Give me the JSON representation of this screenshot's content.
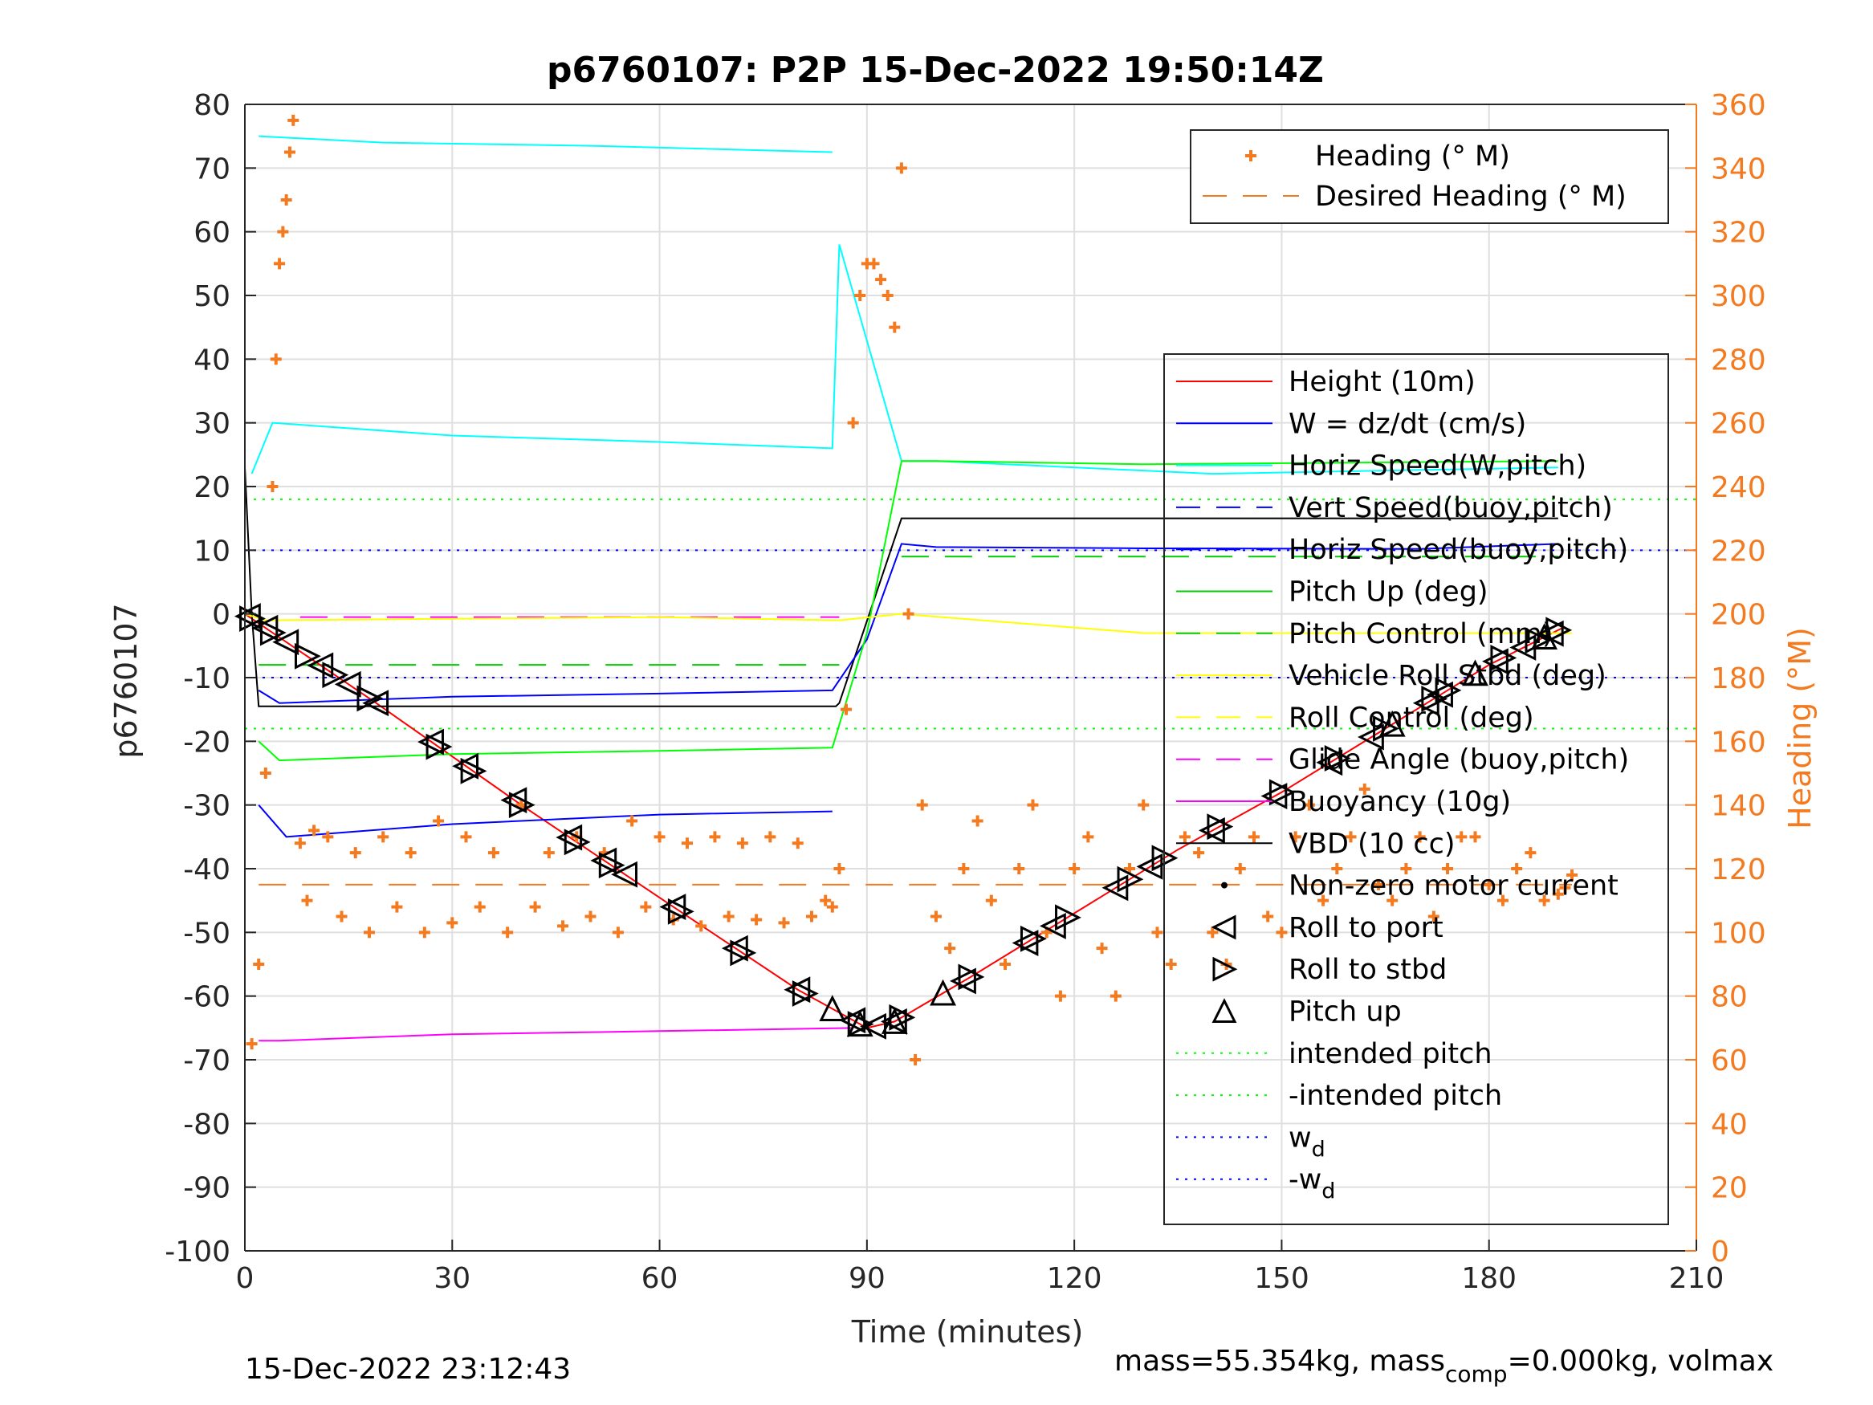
{
  "title": "p6760107: P2P 15-Dec-2022 19:50:14Z",
  "footer_left": "15-Dec-2022 23:12:43",
  "footer_right": {
    "prefix": "mass=55.354kg, mass",
    "sub": "comp",
    "suffix": "=0.000kg, volmax"
  },
  "colors": {
    "heading": "#f47a20",
    "axis": "#262626",
    "grid": "#dfdfdf"
  },
  "chart_data": {
    "type": "line",
    "title": "p6760107: P2P 15-Dec-2022 19:50:14Z",
    "xlabel": "Time (minutes)",
    "ylabel": "p6760107",
    "y2label": "Heading (°M)",
    "xlim": [
      0,
      210
    ],
    "ylim": [
      -100,
      80
    ],
    "y2lim": [
      0,
      360
    ],
    "xticks": [
      0,
      30,
      60,
      90,
      120,
      150,
      180,
      210
    ],
    "yticks": [
      -100,
      -90,
      -80,
      -70,
      -60,
      -50,
      -40,
      -30,
      -20,
      -10,
      0,
      10,
      20,
      30,
      40,
      50,
      60,
      70,
      80
    ],
    "y2ticks": [
      0,
      20,
      40,
      60,
      80,
      100,
      120,
      140,
      160,
      180,
      200,
      220,
      240,
      260,
      280,
      300,
      320,
      340,
      360
    ],
    "grid": true,
    "legend_heading": [
      {
        "label": "Heading (° M)",
        "color": "#f47a20",
        "style": "plus"
      },
      {
        "label": "Desired Heading (° M)",
        "color": "#f47a20",
        "style": "dash"
      }
    ],
    "legend_main": [
      {
        "label": "Height (10m)",
        "color": "#ff0000",
        "style": "line"
      },
      {
        "label": "W = dz/dt (cm/s)",
        "color": "#0000ff",
        "style": "line"
      },
      {
        "label": "Horiz Speed(W,pitch)",
        "color": "#00ffff",
        "style": "line"
      },
      {
        "label": "Vert Speed(buoy,pitch)",
        "color": "#0000ff",
        "style": "dash"
      },
      {
        "label": "Horiz Speed(buoy,pitch)",
        "color": "#0000ff",
        "style": "dash"
      },
      {
        "label": "Pitch Up (deg)",
        "color": "#00cc00",
        "style": "line"
      },
      {
        "label": "Pitch Control (mm)",
        "color": "#00cc00",
        "style": "dash"
      },
      {
        "label": "Vehicle Roll Stbd (deg)",
        "color": "#ffff00",
        "style": "line"
      },
      {
        "label": "Roll Control (deg)",
        "color": "#ffff00",
        "style": "dash"
      },
      {
        "label": "Glide Angle (buoy,pitch)",
        "color": "#ff00ff",
        "style": "dash"
      },
      {
        "label": "Buoyancy (10g)",
        "color": "#ff00ff",
        "style": "line"
      },
      {
        "label": "VBD (10 cc)",
        "color": "#000000",
        "style": "line"
      },
      {
        "label": "Non-zero motor current",
        "color": "#000000",
        "style": "dot"
      },
      {
        "label": "Roll to port",
        "color": "#000000",
        "style": "tri-left"
      },
      {
        "label": "Roll to stbd",
        "color": "#000000",
        "style": "tri-right"
      },
      {
        "label": "Pitch up",
        "color": "#000000",
        "style": "tri-up"
      },
      {
        "label": "intended pitch",
        "color": "#00ff00",
        "style": "dot-line"
      },
      {
        "label": "-intended pitch",
        "color": "#00ff00",
        "style": "dot-line"
      },
      {
        "label": "w",
        "sub": "d",
        "color": "#0000ff",
        "style": "dot-line"
      },
      {
        "label": "-w",
        "sub": "d",
        "color": "#0000ff",
        "style": "dot-line"
      }
    ],
    "series": [
      {
        "name": "Height (10m)",
        "color": "#ff0000",
        "x": [
          0,
          19,
          40,
          62,
          80,
          90,
          94,
          105,
          120,
          135,
          150,
          165,
          180,
          191
        ],
        "y": [
          0,
          -14,
          -30,
          -46,
          -59,
          -65,
          -64,
          -57,
          -47,
          -37,
          -28,
          -18,
          -8,
          -2
        ]
      },
      {
        "name": "VBD (10 cc)",
        "color": "#000000",
        "x": [
          0,
          1,
          2,
          85.5,
          86,
          95,
          96,
          190
        ],
        "y": [
          23,
          0,
          -14.5,
          -14.5,
          -14,
          15,
          15,
          15
        ]
      },
      {
        "name": "Buoyancy (10g)",
        "color": "#ff00ff",
        "x": [
          2,
          5,
          30,
          60,
          88
        ],
        "y": [
          -67,
          -67,
          -66,
          -65.5,
          -65
        ]
      },
      {
        "name": "W = dz/dt (cm/s)",
        "color": "#0000ff",
        "x": [
          2,
          5,
          30,
          60,
          85,
          90,
          95,
          100,
          130,
          170,
          190
        ],
        "y": [
          -12,
          -14,
          -13,
          -12.5,
          -12,
          -4,
          11,
          10.5,
          10.3,
          10.2,
          11
        ]
      },
      {
        "name": "Horiz Speed(W,pitch)",
        "color": "#00ffff",
        "x": [
          1,
          4,
          30,
          60,
          85,
          86,
          95,
          100,
          140,
          190
        ],
        "y": [
          22,
          30,
          28,
          27,
          26,
          58,
          24,
          24,
          22,
          23
        ]
      },
      {
        "name": "Vert Speed(buoy,pitch) upper",
        "color": "#00ffff",
        "x": [
          2,
          20,
          50,
          85
        ],
        "y": [
          75,
          74,
          73.5,
          72.5
        ]
      },
      {
        "name": "Pitch Up (deg)",
        "color": "#00ff00",
        "x": [
          2,
          5,
          30,
          60,
          85,
          90,
          95,
          100,
          130,
          190
        ],
        "y": [
          -20,
          -23,
          -22,
          -21.5,
          -21,
          -3,
          24,
          24,
          23.5,
          24
        ]
      },
      {
        "name": "Vert Speed(buoy,pitch) lower",
        "color": "#0000ff",
        "x": [
          2,
          6,
          30,
          60,
          85
        ],
        "y": [
          -30,
          -35,
          -33,
          -31.5,
          -31
        ]
      },
      {
        "name": "Vehicle Roll Stbd (deg)",
        "color": "#ffff00",
        "x": [
          0,
          3,
          60,
          86,
          95,
          130,
          192
        ],
        "y": [
          0,
          -1,
          -0.5,
          -1,
          0,
          -3,
          -3
        ]
      }
    ],
    "reference_lines": [
      {
        "name": "intended pitch",
        "y": 18,
        "color": "#00ff00",
        "style": "dotted"
      },
      {
        "name": "-intended pitch",
        "y": -18,
        "color": "#00ff00",
        "style": "dotted"
      },
      {
        "name": "w_d",
        "y": 10,
        "color": "#0000ff",
        "style": "dotted"
      },
      {
        "name": "-w_d",
        "y": -10,
        "color": "#0000ff",
        "style": "dotted"
      },
      {
        "name": "Pitch Control (mm) dive",
        "y": -8,
        "x": [
          2,
          86
        ],
        "color": "#00cc00",
        "style": "dashed"
      },
      {
        "name": "Pitch Control (mm) climb",
        "y": 9,
        "x": [
          95,
          190
        ],
        "color": "#00cc00",
        "style": "dashed"
      },
      {
        "name": "Glide Angle (buoy,pitch)",
        "y": -0.5,
        "x": [
          8,
          86
        ],
        "color": "#ff00ff",
        "style": "dashed"
      },
      {
        "name": "Desired Heading (° M)",
        "y2": 115,
        "x": [
          2,
          192
        ],
        "color": "#f47a20",
        "style": "dashed"
      }
    ],
    "heading_points": {
      "name": "Heading (° M)",
      "color": "#f47a20",
      "x": [
        1,
        2,
        3,
        4,
        4.5,
        5,
        5.5,
        6,
        6.5,
        7,
        8,
        9,
        10,
        12,
        14,
        16,
        18,
        20,
        22,
        24,
        26,
        28,
        30,
        32,
        34,
        36,
        38,
        40,
        42,
        44,
        46,
        48,
        50,
        52,
        54,
        56,
        58,
        60,
        62,
        64,
        66,
        68,
        70,
        72,
        74,
        76,
        78,
        80,
        82,
        84,
        85,
        86,
        87,
        88,
        89,
        90,
        91,
        92,
        93,
        94,
        95,
        96,
        97,
        98,
        100,
        102,
        104,
        106,
        108,
        110,
        112,
        114,
        116,
        118,
        120,
        122,
        124,
        126,
        128,
        130,
        132,
        134,
        136,
        138,
        140,
        142,
        144,
        146,
        148,
        150,
        152,
        154,
        156,
        158,
        160,
        162,
        164,
        166,
        168,
        170,
        172,
        174,
        176,
        178,
        180,
        182,
        184,
        186,
        188,
        190,
        191,
        192
      ],
      "y": [
        65,
        90,
        150,
        240,
        280,
        310,
        320,
        330,
        345,
        355,
        128,
        110,
        132,
        130,
        105,
        125,
        100,
        130,
        108,
        125,
        100,
        135,
        103,
        130,
        108,
        125,
        100,
        140,
        108,
        125,
        102,
        130,
        105,
        125,
        100,
        135,
        108,
        130,
        104,
        128,
        102,
        130,
        105,
        128,
        104,
        130,
        103,
        128,
        105,
        110,
        108,
        120,
        170,
        260,
        300,
        310,
        310,
        305,
        300,
        290,
        340,
        200,
        60,
        140,
        105,
        95,
        120,
        135,
        110,
        90,
        120,
        140,
        100,
        80,
        120,
        130,
        95,
        80,
        120,
        140,
        100,
        90,
        130,
        125,
        100,
        90,
        120,
        130,
        105,
        100,
        130,
        140,
        110,
        120,
        130,
        145,
        115,
        110,
        120,
        130,
        105,
        120,
        130,
        130,
        115,
        110,
        120,
        125,
        110,
        112,
        114,
        118
      ]
    },
    "markers": [
      {
        "type": "roll_port",
        "x": [
          0.5,
          3,
          6,
          11,
          15,
          19,
          27,
          32,
          39,
          47,
          52,
          55,
          62,
          71,
          80,
          88,
          91,
          94,
          104,
          113,
          117,
          126,
          131,
          140,
          149,
          157,
          163,
          171,
          173,
          181,
          185,
          189
        ]
      },
      {
        "type": "roll_stbd",
        "x": [
          1,
          4,
          9,
          13,
          18,
          28,
          33,
          40,
          48,
          53,
          63,
          72,
          81,
          89,
          95,
          105,
          114,
          119,
          128,
          133,
          141,
          150,
          158,
          165,
          172,
          174,
          182,
          187,
          190
        ]
      },
      {
        "type": "pitch_up",
        "x": [
          85,
          89,
          94,
          101,
          166,
          178,
          188
        ]
      }
    ]
  }
}
